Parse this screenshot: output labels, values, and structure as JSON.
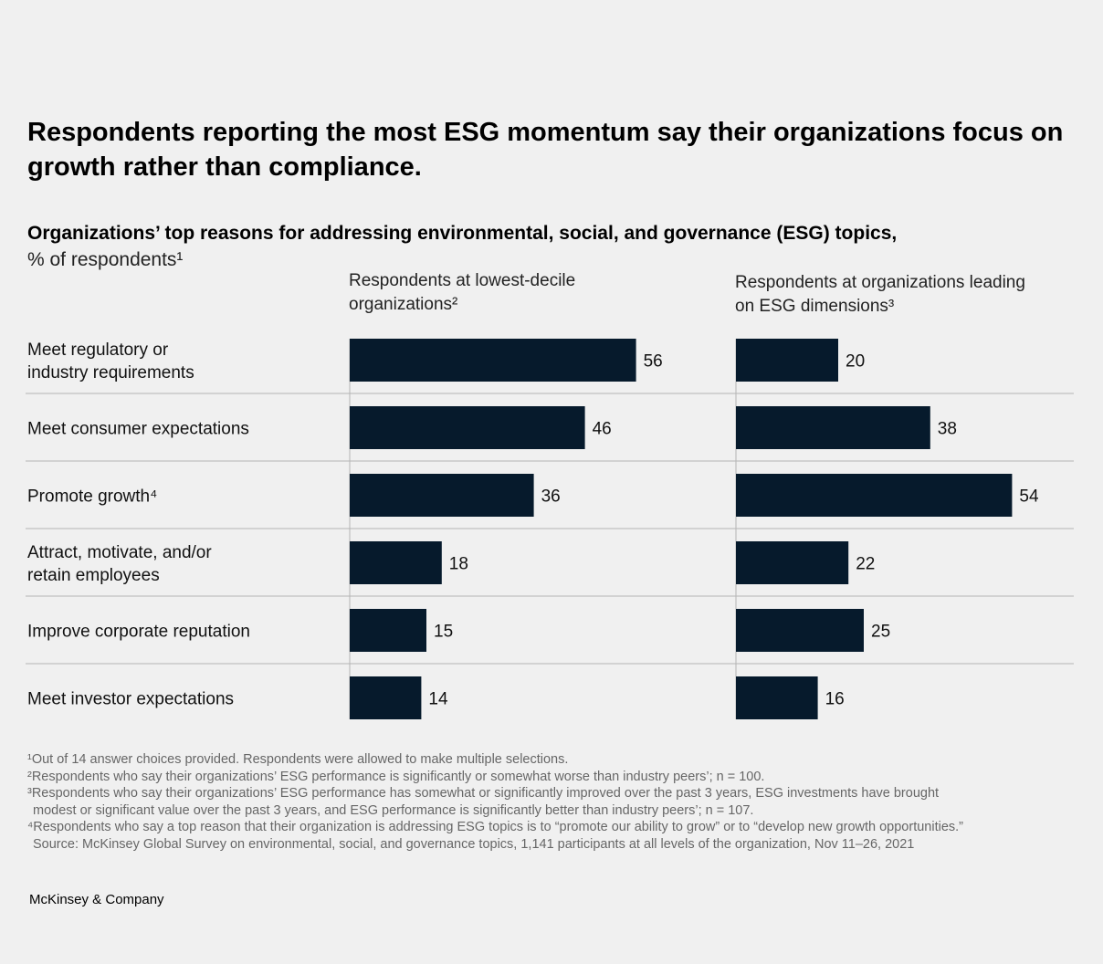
{
  "title": "Respondents reporting the most ESG momentum say their organizations focus on growth rather than compliance.",
  "subtitle": "Organizations’ top reasons for addressing environmental, social, and governance (ESG) topics,",
  "unit": "% of respondents¹",
  "chart_data": {
    "type": "bar",
    "orientation": "horizontal",
    "categories": [
      [
        "Meet regulatory or",
        "industry requirements"
      ],
      [
        "Meet consumer expectations"
      ],
      [
        "Promote growth⁴"
      ],
      [
        "Attract, motivate, and/or",
        "retain employees"
      ],
      [
        "Improve corporate reputation"
      ],
      [
        "Meet investor expectations"
      ]
    ],
    "series": [
      {
        "name_lines": [
          "Respondents at lowest-decile",
          "organizations²"
        ],
        "values": [
          56,
          46,
          36,
          18,
          15,
          14
        ]
      },
      {
        "name_lines": [
          "Respondents at organizations leading",
          "on ESG dimensions³"
        ],
        "values": [
          20,
          38,
          54,
          22,
          25,
          16
        ]
      }
    ],
    "xlim": [
      0,
      60
    ],
    "bar_color": "#061a2c",
    "grid_color": "#b4b4b4"
  },
  "footnotes": [
    "¹Out of 14 answer choices provided. Respondents were allowed to make multiple selections.",
    "²Respondents who say their organizations’ ESG performance is significantly or somewhat worse than industry peers’; n = 100.",
    "³Respondents who say their organizations’ ESG performance has somewhat or significantly improved over the past 3 years, ESG investments have brought",
    "modest or significant value over the past 3 years, and ESG performance is significantly better than industry peers’; n = 107.",
    "⁴Respondents who say a top reason that their organization is addressing ESG topics is to “promote our ability to grow” or to “develop new growth opportunities.”",
    "Source: McKinsey Global Survey on environmental, social, and governance topics, 1,141 participants at all levels of the organization, Nov 11–26, 2021"
  ],
  "brand": "McKinsey & Company"
}
